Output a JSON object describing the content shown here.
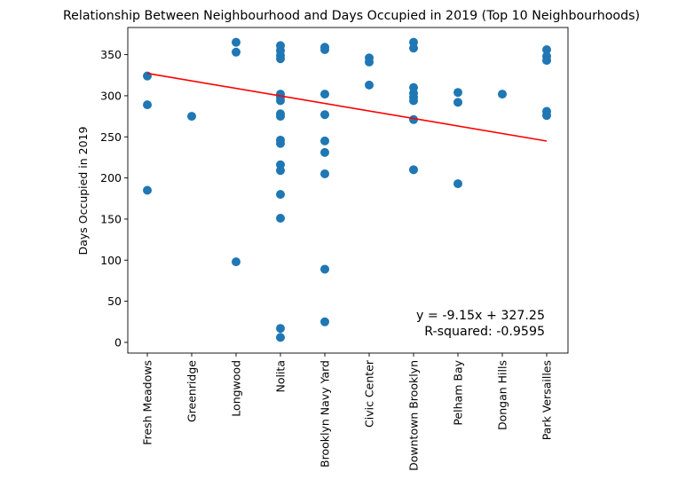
{
  "chart_data": {
    "type": "scatter",
    "title": "Relationship Between Neighbourhood and Days Occupied in 2019 (Top 10 Neighbourhoods)",
    "xlabel": "",
    "ylabel": "Days Occupied in 2019",
    "categories": [
      "Fresh Meadows",
      "Greenridge",
      "Longwood",
      "Nolita",
      "Brooklyn Navy Yard",
      "Civic Center",
      "Downtown Brooklyn",
      "Pelham Bay",
      "Dongan Hills",
      "Park Versailles"
    ],
    "ylim": [
      -13,
      383
    ],
    "yticks": [
      0,
      50,
      100,
      150,
      200,
      250,
      300,
      350
    ],
    "grid": false,
    "point_color": "#1f77b4",
    "points": [
      {
        "category": "Fresh Meadows",
        "y": 324
      },
      {
        "category": "Fresh Meadows",
        "y": 289
      },
      {
        "category": "Fresh Meadows",
        "y": 185
      },
      {
        "category": "Greenridge",
        "y": 275
      },
      {
        "category": "Longwood",
        "y": 365
      },
      {
        "category": "Longwood",
        "y": 353
      },
      {
        "category": "Longwood",
        "y": 98
      },
      {
        "category": "Nolita",
        "y": 361
      },
      {
        "category": "Nolita",
        "y": 355
      },
      {
        "category": "Nolita",
        "y": 349
      },
      {
        "category": "Nolita",
        "y": 345
      },
      {
        "category": "Nolita",
        "y": 302
      },
      {
        "category": "Nolita",
        "y": 298
      },
      {
        "category": "Nolita",
        "y": 294
      },
      {
        "category": "Nolita",
        "y": 278
      },
      {
        "category": "Nolita",
        "y": 275
      },
      {
        "category": "Nolita",
        "y": 246
      },
      {
        "category": "Nolita",
        "y": 242
      },
      {
        "category": "Nolita",
        "y": 216
      },
      {
        "category": "Nolita",
        "y": 209
      },
      {
        "category": "Nolita",
        "y": 180
      },
      {
        "category": "Nolita",
        "y": 151
      },
      {
        "category": "Nolita",
        "y": 17
      },
      {
        "category": "Nolita",
        "y": 6
      },
      {
        "category": "Brooklyn Navy Yard",
        "y": 359
      },
      {
        "category": "Brooklyn Navy Yard",
        "y": 356
      },
      {
        "category": "Brooklyn Navy Yard",
        "y": 302
      },
      {
        "category": "Brooklyn Navy Yard",
        "y": 277
      },
      {
        "category": "Brooklyn Navy Yard",
        "y": 245
      },
      {
        "category": "Brooklyn Navy Yard",
        "y": 231
      },
      {
        "category": "Brooklyn Navy Yard",
        "y": 205
      },
      {
        "category": "Brooklyn Navy Yard",
        "y": 89
      },
      {
        "category": "Brooklyn Navy Yard",
        "y": 25
      },
      {
        "category": "Civic Center",
        "y": 346
      },
      {
        "category": "Civic Center",
        "y": 341
      },
      {
        "category": "Civic Center",
        "y": 313
      },
      {
        "category": "Downtown Brooklyn",
        "y": 365
      },
      {
        "category": "Downtown Brooklyn",
        "y": 358
      },
      {
        "category": "Downtown Brooklyn",
        "y": 310
      },
      {
        "category": "Downtown Brooklyn",
        "y": 303
      },
      {
        "category": "Downtown Brooklyn",
        "y": 298
      },
      {
        "category": "Downtown Brooklyn",
        "y": 294
      },
      {
        "category": "Downtown Brooklyn",
        "y": 271
      },
      {
        "category": "Downtown Brooklyn",
        "y": 210
      },
      {
        "category": "Pelham Bay",
        "y": 304
      },
      {
        "category": "Pelham Bay",
        "y": 292
      },
      {
        "category": "Pelham Bay",
        "y": 193
      },
      {
        "category": "Dongan Hills",
        "y": 302
      },
      {
        "category": "Park Versailles",
        "y": 356
      },
      {
        "category": "Park Versailles",
        "y": 348
      },
      {
        "category": "Park Versailles",
        "y": 343
      },
      {
        "category": "Park Versailles",
        "y": 281
      },
      {
        "category": "Park Versailles",
        "y": 276
      }
    ],
    "regression_line": {
      "color": "#ff0000",
      "slope": -9.15,
      "intercept": 327.25,
      "x_start": 0,
      "x_end": 9
    },
    "annotation": {
      "equation": "y = -9.15x + 327.25",
      "r_squared": "R-squared: -0.9595"
    }
  }
}
